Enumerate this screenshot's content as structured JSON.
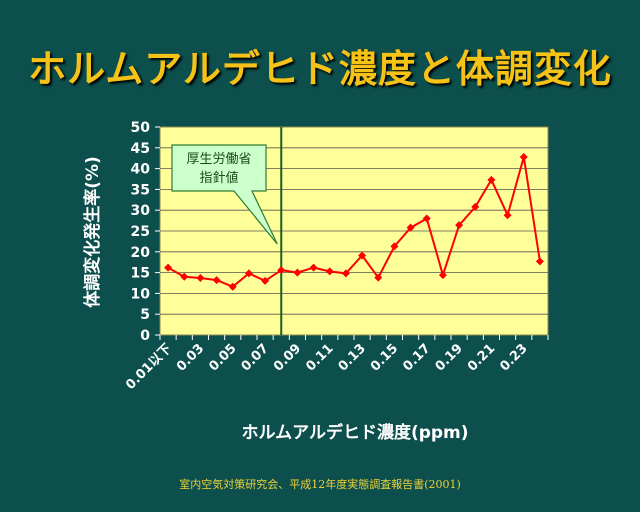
{
  "title": "ホルムアルデヒド濃度と体調変化",
  "footer": "室内空気対策研究会、平成12年度実態調査報告書(2001)",
  "colors": {
    "background": "#0c4f4c",
    "title": "#f5c218",
    "plot_area": "#ffff99",
    "series": "#ff0000",
    "callout_fill": "#ccffcc",
    "threshold_line": "#1f5f1f"
  },
  "chart_data": {
    "type": "line",
    "xlabel": "ホルムアルデヒド濃度(ppm)",
    "ylabel": "体調変化発生率(%)",
    "ylim": [
      0,
      50
    ],
    "yticks": [
      "0",
      "5",
      "10",
      "15",
      "20",
      "25",
      "30",
      "35",
      "40",
      "45",
      "50"
    ],
    "x": [
      "0.01以下",
      "0.02",
      "0.03",
      "0.04",
      "0.05",
      "0.06",
      "0.07",
      "0.08",
      "0.09",
      "0.10",
      "0.11",
      "0.12",
      "0.13",
      "0.14",
      "0.15",
      "0.16",
      "0.17",
      "0.18",
      "0.19",
      "0.20",
      "0.21",
      "0.22",
      "0.23",
      "0.24"
    ],
    "xtick_labels": [
      "0.01以下",
      "0.03",
      "0.05",
      "0.07",
      "0.09",
      "0.11",
      "0.13",
      "0.15",
      "0.17",
      "0.19",
      "0.21",
      "0.23"
    ],
    "series": [
      {
        "values": [
          16.2,
          14.0,
          13.7,
          13.2,
          11.6,
          14.8,
          13.0,
          15.6,
          15.0,
          16.2,
          15.3,
          14.8,
          19.1,
          13.8,
          21.3,
          25.8,
          28.0,
          14.4,
          26.4,
          30.8,
          37.3,
          28.8,
          42.8,
          17.7
        ]
      }
    ],
    "grid": true,
    "threshold": {
      "x": "0.08",
      "label_lines": [
        "厚生労働省",
        "指針値"
      ]
    }
  }
}
